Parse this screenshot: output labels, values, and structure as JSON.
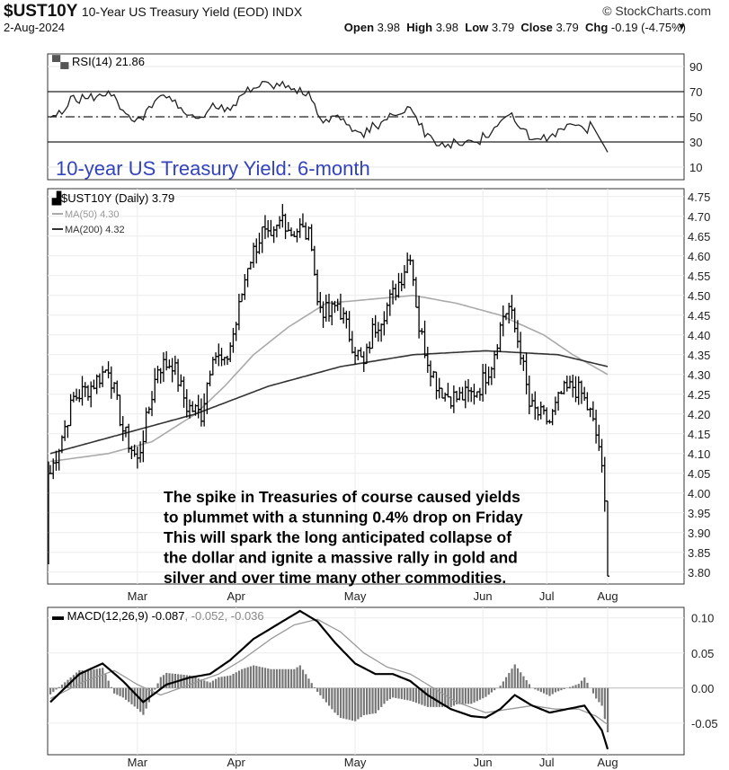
{
  "header": {
    "symbol": "$UST10Y",
    "description": "10-Year US Treasury Yield (EOD) INDX",
    "copyright": "© StockCharts.com",
    "date": "2-Aug-2024",
    "open_label": "Open",
    "open": "3.98",
    "high_label": "High",
    "high": "3.98",
    "low_label": "Low",
    "low": "3.79",
    "close_label": "Close",
    "close": "3.79",
    "chg_label": "Chg",
    "chg": "-0.19 (-4.75%)",
    "chg_icon": "triangle-down-icon"
  },
  "rsi_panel": {
    "legend": "RSI(14) 21.86",
    "title": "10-year US Treasury Yield: 6-month",
    "title_color": "#3344bb",
    "ticks": [
      90,
      70,
      50,
      30,
      10
    ],
    "levels": [
      70,
      50,
      30
    ],
    "ylim": [
      0,
      100
    ]
  },
  "price_panel": {
    "legend_price": "$UST10Y (Daily) 3.79",
    "legend_ma50": "MA(50) 4.30",
    "legend_ma200": "MA(200) 4.32",
    "ma50_color": "#aaaaaa",
    "ma200_color": "#333333",
    "ticks": [
      4.75,
      4.7,
      4.65,
      4.6,
      4.55,
      4.5,
      4.45,
      4.4,
      4.35,
      4.3,
      4.25,
      4.2,
      4.15,
      4.1,
      4.05,
      4.0,
      3.95,
      3.9,
      3.85,
      3.8
    ],
    "ylim": [
      3.77,
      4.77
    ],
    "months": [
      "Mar",
      "Apr",
      "May",
      "Jun",
      "Jul",
      "Aug"
    ],
    "annotation": [
      "The spike in Treasuries of course caused yields",
      "to plummet with a stunning 0.4% drop on Friday",
      "This will spark the long anticipated collapse of",
      "the dollar and ignite a massive rally in gold and",
      "silver and over time many other commodities."
    ]
  },
  "macd_panel": {
    "legend_prefix": "MACD(12,26,9)",
    "macd": "-0.087",
    "signal": "-0.052",
    "hist": "-0.036",
    "ticks": [
      0.1,
      0.05,
      0.0,
      -0.05
    ],
    "ylim": [
      -0.095,
      0.115
    ],
    "months": [
      "Mar",
      "Apr",
      "May",
      "Jun",
      "Jul",
      "Aug"
    ]
  },
  "chart_data": {
    "type": "line",
    "title": "10-year US Treasury Yield: 6-month",
    "series": [
      {
        "name": "$UST10Y (Daily) 3.79",
        "anchors": [
          [
            0,
            4.05
          ],
          [
            3,
            4.12
          ],
          [
            8,
            4.24
          ],
          [
            14,
            4.27
          ],
          [
            20,
            4.32
          ],
          [
            25,
            4.16
          ],
          [
            30,
            4.08
          ],
          [
            33,
            4.18
          ],
          [
            37,
            4.32
          ],
          [
            42,
            4.33
          ],
          [
            47,
            4.22
          ],
          [
            52,
            4.2
          ],
          [
            56,
            4.36
          ],
          [
            60,
            4.32
          ],
          [
            64,
            4.43
          ],
          [
            68,
            4.58
          ],
          [
            73,
            4.66
          ],
          [
            76,
            4.63
          ],
          [
            80,
            4.7
          ],
          [
            83,
            4.66
          ],
          [
            86,
            4.67
          ],
          [
            90,
            4.64
          ],
          [
            92,
            4.48
          ],
          [
            96,
            4.45
          ],
          [
            99,
            4.48
          ],
          [
            104,
            4.38
          ],
          [
            108,
            4.32
          ],
          [
            111,
            4.41
          ],
          [
            115,
            4.46
          ],
          [
            118,
            4.5
          ],
          [
            121,
            4.55
          ],
          [
            124,
            4.61
          ],
          [
            127,
            4.42
          ],
          [
            130,
            4.34
          ],
          [
            133,
            4.28
          ],
          [
            136,
            4.25
          ],
          [
            140,
            4.24
          ],
          [
            145,
            4.25
          ],
          [
            148,
            4.27
          ],
          [
            152,
            4.33
          ],
          [
            156,
            4.45
          ],
          [
            158,
            4.47
          ],
          [
            162,
            4.36
          ],
          [
            165,
            4.22
          ],
          [
            168,
            4.2
          ],
          [
            172,
            4.18
          ],
          [
            176,
            4.25
          ],
          [
            180,
            4.27
          ],
          [
            183,
            4.25
          ],
          [
            186,
            4.2
          ],
          [
            189,
            4.12
          ],
          [
            191,
            3.98
          ],
          [
            192,
            3.79
          ]
        ]
      },
      {
        "name": "MA(50) 4.30",
        "anchors": [
          [
            0,
            4.08
          ],
          [
            20,
            4.1
          ],
          [
            35,
            4.13
          ],
          [
            50,
            4.2
          ],
          [
            60,
            4.27
          ],
          [
            70,
            4.35
          ],
          [
            82,
            4.42
          ],
          [
            95,
            4.48
          ],
          [
            110,
            4.49
          ],
          [
            125,
            4.5
          ],
          [
            140,
            4.48
          ],
          [
            155,
            4.45
          ],
          [
            170,
            4.4
          ],
          [
            180,
            4.35
          ],
          [
            192,
            4.3
          ]
        ]
      },
      {
        "name": "MA(200) 4.32",
        "anchors": [
          [
            0,
            4.1
          ],
          [
            25,
            4.15
          ],
          [
            50,
            4.2
          ],
          [
            75,
            4.27
          ],
          [
            100,
            4.32
          ],
          [
            125,
            4.35
          ],
          [
            150,
            4.36
          ],
          [
            175,
            4.35
          ],
          [
            192,
            4.32
          ]
        ]
      }
    ],
    "macd_series": [
      {
        "name": "MACD",
        "anchors": [
          [
            0,
            -0.02
          ],
          [
            10,
            0.02
          ],
          [
            18,
            0.035
          ],
          [
            25,
            0.01
          ],
          [
            32,
            -0.02
          ],
          [
            40,
            0.005
          ],
          [
            48,
            0.015
          ],
          [
            55,
            0.02
          ],
          [
            62,
            0.04
          ],
          [
            70,
            0.07
          ],
          [
            78,
            0.09
          ],
          [
            86,
            0.11
          ],
          [
            92,
            0.095
          ],
          [
            98,
            0.065
          ],
          [
            105,
            0.035
          ],
          [
            112,
            0.02
          ],
          [
            118,
            0.02
          ],
          [
            124,
            0.01
          ],
          [
            130,
            -0.01
          ],
          [
            138,
            -0.03
          ],
          [
            145,
            -0.04
          ],
          [
            150,
            -0.042
          ],
          [
            155,
            -0.03
          ],
          [
            160,
            -0.01
          ],
          [
            166,
            -0.025
          ],
          [
            172,
            -0.035
          ],
          [
            178,
            -0.03
          ],
          [
            184,
            -0.025
          ],
          [
            190,
            -0.06
          ],
          [
            192,
            -0.087
          ]
        ]
      },
      {
        "name": "Signal",
        "anchors": [
          [
            0,
            -0.015
          ],
          [
            12,
            0.01
          ],
          [
            22,
            0.025
          ],
          [
            30,
            0.005
          ],
          [
            38,
            -0.01
          ],
          [
            48,
            0.005
          ],
          [
            58,
            0.02
          ],
          [
            66,
            0.04
          ],
          [
            76,
            0.07
          ],
          [
            84,
            0.09
          ],
          [
            92,
            0.098
          ],
          [
            100,
            0.08
          ],
          [
            108,
            0.05
          ],
          [
            116,
            0.03
          ],
          [
            124,
            0.02
          ],
          [
            132,
            0.0
          ],
          [
            140,
            -0.02
          ],
          [
            150,
            -0.035
          ],
          [
            158,
            -0.03
          ],
          [
            166,
            -0.025
          ],
          [
            174,
            -0.03
          ],
          [
            182,
            -0.03
          ],
          [
            188,
            -0.04
          ],
          [
            192,
            -0.052
          ]
        ]
      }
    ]
  }
}
